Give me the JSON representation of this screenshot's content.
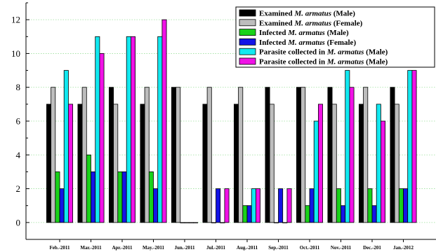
{
  "chart_data": {
    "type": "bar",
    "categories": [
      "Feb.-2011",
      "Mar.-2011",
      "Apr.-2011",
      "May.-2011",
      "Jun.-2011",
      "Jul.-2011",
      "Aug.-2011",
      "Sep.-2011",
      "Oct.-2011",
      "Nov.-2011",
      "Dec.-201",
      "Jan.-2012"
    ],
    "ylim": [
      -1,
      13
    ],
    "yticks": [
      0,
      2,
      4,
      6,
      8,
      10,
      12
    ],
    "grid": true,
    "legend_position": "top-right",
    "series": [
      {
        "name_prefix": "Examined ",
        "name_species": "M. armatus",
        "name_suffix": " (Male)",
        "color": "#000000",
        "values": [
          7,
          7,
          8,
          7,
          8,
          7,
          7,
          8,
          8,
          8,
          7,
          8
        ]
      },
      {
        "name_prefix": "Examined ",
        "name_species": "M. armatus",
        "name_suffix": " (Female)",
        "color": "#bdbdbd",
        "values": [
          8,
          8,
          7,
          8,
          8,
          8,
          8,
          7,
          8,
          7,
          8,
          7
        ]
      },
      {
        "name_prefix": "Infected ",
        "name_species": "M. armatus",
        "name_suffix": " (Male)",
        "color": "#19d219",
        "values": [
          3,
          4,
          3,
          3,
          0,
          0,
          1,
          0,
          1,
          2,
          2,
          2
        ]
      },
      {
        "name_prefix": "Infected ",
        "name_species": "M. armatus",
        "name_suffix": " (Female)",
        "color": "#1414e6",
        "values": [
          2,
          3,
          3,
          2,
          0,
          2,
          1,
          2,
          2,
          1,
          1,
          2
        ]
      },
      {
        "name_prefix": "Parasite collected in ",
        "name_species": "M. armatus",
        "name_suffix": " (Male)",
        "color": "#11e8f0",
        "values": [
          9,
          11,
          11,
          11,
          0,
          0,
          2,
          0,
          6,
          9,
          7,
          9
        ]
      },
      {
        "name_prefix": "Parasite collected in ",
        "name_species": "M. armatus",
        "name_suffix": " (Male)",
        "color": "#f012e6",
        "values": [
          7,
          10,
          11,
          12,
          0,
          2,
          2,
          2,
          7,
          8,
          6,
          9
        ]
      }
    ]
  }
}
